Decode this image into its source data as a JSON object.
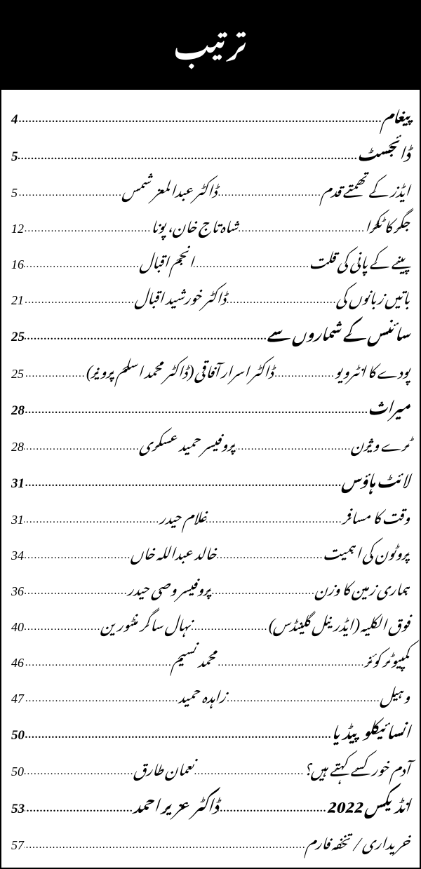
{
  "header": {
    "title": "ترتیب"
  },
  "colors": {
    "header_bg": "#000000",
    "header_fg": "#ffffff",
    "body_bg": "#ffffff",
    "text": "#000000",
    "border": "#000000"
  },
  "typography": {
    "header_fontsize": 40,
    "section_fontsize": 22,
    "row_fontsize": 21,
    "page_fontsize": 18,
    "font_style": "italic"
  },
  "rows": [
    {
      "type": "section",
      "title": "پیغام",
      "author": "",
      "page": "4"
    },
    {
      "type": "section",
      "title": "ڈائجسٹ",
      "author": "",
      "page": "5"
    },
    {
      "type": "entry",
      "title": "ایڈز کے تھمتے قدم",
      "author": "ڈاکٹر عبدالمعز شمس",
      "page": "5"
    },
    {
      "type": "entry",
      "title": "جگر کا ٹکڑا",
      "author": "شاہ تاج خان، پونا",
      "page": "12"
    },
    {
      "type": "entry",
      "title": "پینے کے پانی کی قلت",
      "author": "انجم اقبال",
      "page": "16"
    },
    {
      "type": "entry",
      "title": "باتیں زبانوں کی",
      "author": "ڈاکٹر خورشید اقبال",
      "page": "21"
    },
    {
      "type": "section",
      "title": "سائنس کے شماروں سے",
      "author": "",
      "page": "25"
    },
    {
      "type": "entry",
      "title": "پودے کا انٹرویو",
      "author": "ڈاکٹر اسرار آفاقی (ڈاکٹر محمد اسلم پرویز)",
      "page": "25"
    },
    {
      "type": "section",
      "title": "میراث",
      "author": "",
      "page": "28"
    },
    {
      "type": "entry",
      "title": "ٹرے ویژن",
      "author": "پروفیسر حمید عسکری",
      "page": "28"
    },
    {
      "type": "section",
      "title": "لائٹ ہاؤس",
      "author": "",
      "page": "31"
    },
    {
      "type": "entry",
      "title": "وقت کا مسافر",
      "author": "غلام حیدر",
      "page": "31"
    },
    {
      "type": "entry",
      "title": "پروٹون کی اہمیت",
      "author": "خالد عبداللہ خاں",
      "page": "34"
    },
    {
      "type": "entry",
      "title": "ہماری زمین کا وزن",
      "author": "پروفیسر وصی حیدر",
      "page": "36"
    },
    {
      "type": "entry",
      "title": "فوق الکلیہ (ایڈرینل گلینڈس)",
      "author": "نہال ساگر منٹورین",
      "page": "40"
    },
    {
      "type": "entry",
      "title": "کمپیوٹر کوئز",
      "author": "محمد نسیم",
      "page": "46"
    },
    {
      "type": "entry",
      "title": "وہیل",
      "author": "زاہدہ حمید",
      "page": "47"
    },
    {
      "type": "section",
      "title": "انسائیکلوپیڈیا",
      "author": "",
      "page": "50"
    },
    {
      "type": "entry",
      "title": "آدم خور کسے کہتے ہیں؟",
      "author": "نعمان طارق",
      "page": "50"
    },
    {
      "type": "section",
      "title": "انڈیکس 2022",
      "author": "ڈاکٹر عزیر احمد",
      "page": "53"
    },
    {
      "type": "entry",
      "title": "خریداری / تخفہ فارم",
      "author": "",
      "page": "57"
    }
  ]
}
